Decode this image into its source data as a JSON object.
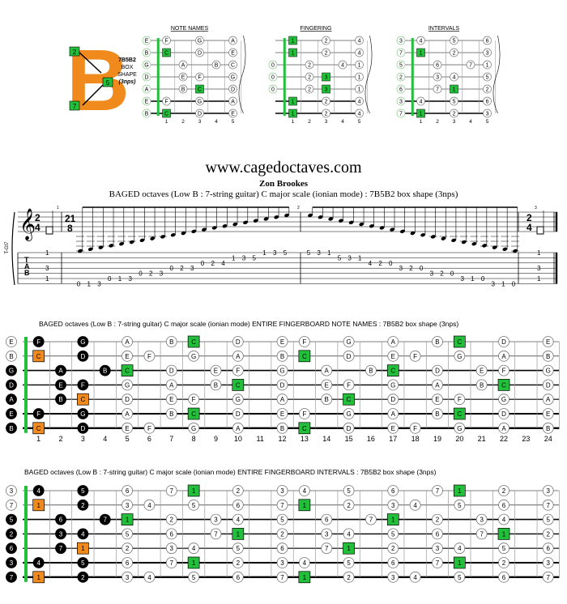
{
  "logo": {
    "letter": "B",
    "marks": [
      "2",
      "5",
      "7"
    ]
  },
  "shape_box": {
    "lines": [
      "7B5B2",
      "BOX",
      "SHAPE",
      "(3nps)"
    ]
  },
  "mini_panels": {
    "titles": [
      "NOTE NAMES",
      "FINGERING",
      "INTERVALS"
    ],
    "fret_numbers": [
      "1",
      "2",
      "3",
      "4",
      "5"
    ],
    "note_names": [
      [
        "E",
        "F",
        "",
        "G",
        "",
        "A"
      ],
      [
        "B",
        "C",
        "",
        "D",
        "",
        "E"
      ],
      [
        "G",
        "",
        "A",
        "",
        "B",
        "C"
      ],
      [
        "D",
        "",
        "E",
        "F",
        "",
        "G"
      ],
      [
        "A",
        "",
        "B",
        "C",
        "",
        "D"
      ],
      [
        "E",
        "F",
        "",
        "G",
        "",
        "A"
      ],
      [
        "B",
        "C",
        "",
        "D",
        "",
        "E"
      ]
    ],
    "fingering": [
      [
        "",
        "1",
        "",
        "2",
        "",
        "4"
      ],
      [
        "",
        "1",
        "",
        "2",
        "",
        "4"
      ],
      [
        "0",
        "",
        "2",
        "",
        "4",
        "1"
      ],
      [
        "0",
        "",
        "2",
        "3",
        "",
        "1"
      ],
      [
        "0",
        "",
        "2",
        "3",
        "",
        "1"
      ],
      [
        "",
        "1",
        "",
        "2",
        "",
        "4"
      ],
      [
        "",
        "1",
        "",
        "2",
        "",
        "4"
      ]
    ],
    "intervals": [
      [
        "3",
        "4",
        "",
        "5",
        "",
        "6"
      ],
      [
        "7",
        "1",
        "",
        "2",
        "",
        "3"
      ],
      [
        "5",
        "",
        "6",
        "",
        "7",
        "1"
      ],
      [
        "2",
        "",
        "3",
        "4",
        "",
        "5"
      ],
      [
        "6",
        "",
        "7",
        "1",
        "",
        "2"
      ],
      [
        "3",
        "4",
        "",
        "5",
        "",
        "6"
      ],
      [
        "7",
        "1",
        "",
        "2",
        "",
        "3"
      ]
    ]
  },
  "header": {
    "site": "www.cagedoctaves.com",
    "author": "Zon Brookes",
    "subtitle": "BAGED octaves (Low B : 7-string guitar) C major scale (ionian mode) : 7B5B2 box shape (3nps)"
  },
  "staff": {
    "instrument_label": "T-Gt7",
    "time_sig_start": [
      "2",
      "4"
    ],
    "time_sig_mid": [
      "21",
      "8"
    ],
    "time_sig_end": [
      "2",
      "4"
    ],
    "measure_numbers": [
      "1",
      "2",
      "3"
    ],
    "tab_letters": [
      "T",
      "A",
      "B"
    ],
    "tab_first_measure": [
      "1",
      "3",
      "1"
    ],
    "tab_last_measure": [
      "1",
      "3",
      "1"
    ],
    "tab_ascending": [
      "0",
      "1",
      "3",
      "0",
      "1",
      "3",
      "0",
      "2",
      "3",
      "0",
      "2",
      "3",
      "0",
      "2",
      "4",
      "1",
      "3",
      "5",
      "1",
      "3",
      "5"
    ],
    "tab_descending": [
      "5",
      "3",
      "1",
      "5",
      "3",
      "1",
      "4",
      "2",
      "0",
      "3",
      "2",
      "0",
      "3",
      "2",
      "0",
      "3",
      "1",
      "0",
      "3",
      "1",
      "0"
    ]
  },
  "fretboard_notes": {
    "title": "BAGED octaves (Low B : 7-string guitar) C major scale (ionian mode) ENTIRE FINGERBOARD  NOTE NAMES : 7B5B2 box shape (3nps)",
    "open": [
      "E",
      "B",
      "G",
      "D",
      "A",
      "E",
      "B"
    ],
    "strings": [
      {
        "1": "F",
        "3": "G",
        "5": "A",
        "7": "B",
        "8": "C",
        "10": "D",
        "12": "E",
        "13": "F",
        "15": "G",
        "17": "A",
        "19": "B",
        "20": "C",
        "22": "D",
        "24": "E"
      },
      {
        "1": "C",
        "3": "D",
        "5": "E",
        "6": "F",
        "8": "G",
        "10": "A",
        "12": "B",
        "13": "C",
        "15": "D",
        "17": "E",
        "18": "F",
        "20": "G",
        "22": "A",
        "24": "B"
      },
      {
        "2": "A",
        "4": "B",
        "5": "C",
        "7": "D",
        "9": "E",
        "10": "F",
        "12": "G",
        "14": "A",
        "16": "B",
        "17": "C",
        "19": "D",
        "21": "E",
        "22": "F",
        "24": "G"
      },
      {
        "2": "E",
        "3": "F",
        "5": "G",
        "7": "A",
        "9": "B",
        "10": "C",
        "12": "D",
        "14": "E",
        "15": "F",
        "17": "G",
        "19": "A",
        "21": "B",
        "22": "C",
        "24": "D"
      },
      {
        "2": "B",
        "3": "C",
        "5": "D",
        "7": "E",
        "8": "F",
        "10": "G",
        "12": "A",
        "14": "B",
        "15": "C",
        "17": "D",
        "19": "E",
        "20": "F",
        "22": "G",
        "24": "A"
      },
      {
        "1": "F",
        "3": "G",
        "5": "A",
        "7": "B",
        "8": "C",
        "10": "D",
        "12": "E",
        "13": "F",
        "15": "G",
        "17": "A",
        "19": "B",
        "20": "C",
        "22": "D",
        "24": "E"
      },
      {
        "1": "C",
        "3": "D",
        "5": "E",
        "6": "F",
        "8": "G",
        "10": "A",
        "12": "B",
        "13": "C",
        "15": "D",
        "17": "E",
        "18": "F",
        "20": "G",
        "22": "A",
        "24": "B"
      }
    ],
    "fret_numbers": [
      "1",
      "2",
      "3",
      "4",
      "5",
      "6",
      "7",
      "8",
      "9",
      "10",
      "11",
      "12",
      "13",
      "14",
      "15",
      "16",
      "17",
      "18",
      "19",
      "20",
      "21",
      "22",
      "23",
      "24"
    ]
  },
  "fretboard_intervals": {
    "title": "BAGED octaves (Low B : 7-string guitar) C major scale (ionian mode) ENTIRE FINGERBOARD  INTERVALS : 7B5B2 box shape (3nps)",
    "open": [
      "3",
      "7",
      "5",
      "2",
      "6",
      "3",
      "7"
    ],
    "strings": [
      {
        "1": "4",
        "3": "5",
        "5": "6",
        "7": "7",
        "8": "1",
        "10": "2",
        "12": "3",
        "13": "4",
        "15": "5",
        "17": "6",
        "19": "7",
        "20": "1",
        "22": "2",
        "24": "3"
      },
      {
        "1": "1",
        "3": "2",
        "5": "3",
        "6": "4",
        "8": "5",
        "10": "6",
        "12": "7",
        "13": "1",
        "15": "2",
        "17": "3",
        "18": "4",
        "20": "5",
        "22": "6",
        "24": "7"
      },
      {
        "2": "6",
        "4": "7",
        "5": "1",
        "7": "2",
        "9": "3",
        "10": "4",
        "12": "5",
        "14": "6",
        "16": "7",
        "17": "1",
        "19": "2",
        "21": "3",
        "22": "4",
        "24": "5"
      },
      {
        "2": "3",
        "3": "4",
        "5": "5",
        "7": "6",
        "9": "7",
        "10": "1",
        "12": "2",
        "14": "3",
        "15": "4",
        "17": "5",
        "19": "6",
        "21": "7",
        "22": "1",
        "24": "2"
      },
      {
        "2": "7",
        "3": "1",
        "5": "2",
        "7": "3",
        "8": "4",
        "10": "5",
        "12": "6",
        "14": "7",
        "15": "1",
        "17": "2",
        "19": "3",
        "20": "4",
        "22": "5",
        "24": "6"
      },
      {
        "1": "4",
        "3": "5",
        "5": "6",
        "7": "7",
        "8": "1",
        "10": "2",
        "12": "3",
        "13": "4",
        "15": "5",
        "17": "6",
        "19": "7",
        "20": "1",
        "22": "2",
        "24": "3"
      },
      {
        "1": "1",
        "3": "2",
        "5": "3",
        "6": "4",
        "8": "5",
        "10": "6",
        "12": "7",
        "13": "1",
        "15": "2",
        "17": "3",
        "18": "4",
        "20": "5",
        "22": "6",
        "24": "7"
      }
    ]
  },
  "colors": {
    "orange": "#f08a1c",
    "green": "#22c03a",
    "black": "#000000",
    "ring": "#777777"
  }
}
